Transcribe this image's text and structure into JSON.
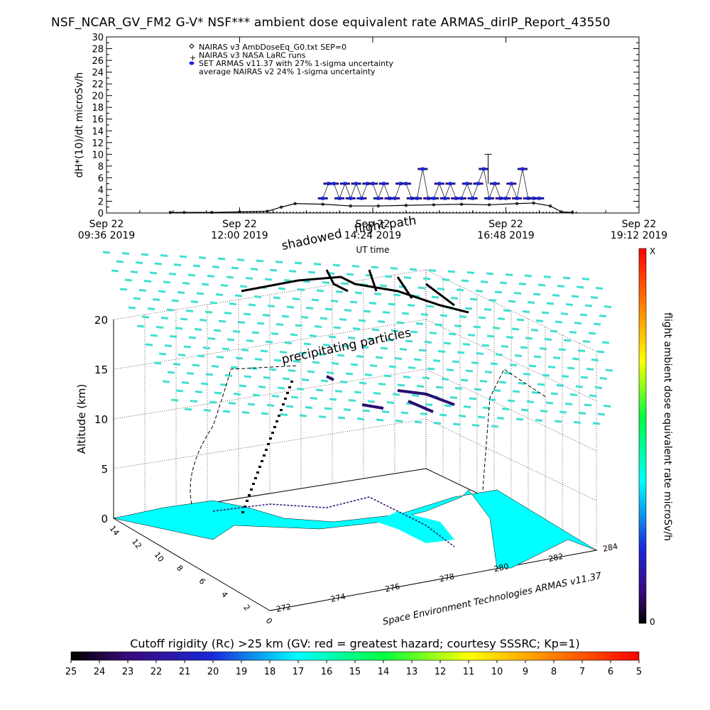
{
  "title": "NSF_NCAR_GV_FM2 G-V* NSF*** ambient dose equivalent rate ARMAS_dirIP_Report_43550",
  "colors": {
    "series_armas": "#2a1070",
    "series_armas_marker": "#1a28d8",
    "surface": "#00ffff",
    "mesh": "#40e0d0",
    "track": "#000000"
  },
  "chart_data": [
    {
      "type": "scatter",
      "ylabel": "dH*(10)/dt microSv/h",
      "xlabel": "UT time",
      "ylim": [
        0,
        30
      ],
      "yticks": [
        0,
        2,
        4,
        6,
        8,
        10,
        12,
        14,
        16,
        18,
        20,
        22,
        24,
        26,
        28,
        30
      ],
      "xticks": [
        {
          "line1": "Sep 22",
          "line2": "09:36 2019"
        },
        {
          "line1": "Sep 22",
          "line2": "12:00 2019"
        },
        {
          "line1": "Sep 22",
          "line2": "14:24 2019"
        },
        {
          "line1": "Sep 22",
          "line2": "16:48 2019"
        },
        {
          "line1": "Sep 22",
          "line2": "19:12 2019"
        }
      ],
      "xrange_hours": [
        9.6,
        19.2
      ],
      "legend": [
        "NAIRAS v3 AmbDoseEq_G0.txt SEP=0",
        "NAIRAS v3 NASA LaRC runs",
        "SET ARMAS v11.37 with 27% 1-sigma uncertainty",
        "average NAIRAS v2 24% 1-sigma uncertainty"
      ],
      "series": [
        {
          "name": "NAIRAS v3 AmbDoseEq_G0.txt SEP=0",
          "x": [
            10.75,
            11.0,
            11.5,
            12.0,
            12.5,
            12.75,
            13.0,
            13.5,
            14.0,
            14.5,
            15.0,
            15.5,
            16.0,
            16.5,
            17.0,
            17.3,
            17.6,
            17.8,
            18.0
          ],
          "y": [
            0.1,
            0.1,
            0.1,
            0.2,
            0.3,
            1.0,
            1.6,
            1.5,
            1.2,
            1.2,
            1.3,
            1.4,
            1.5,
            1.4,
            1.6,
            1.7,
            1.2,
            0.2,
            0.1
          ]
        },
        {
          "name": "SET ARMAS v11.37 with 27% 1-sigma uncertainty",
          "x": [
            13.5,
            13.6,
            13.7,
            13.8,
            13.9,
            14.0,
            14.1,
            14.2,
            14.3,
            14.4,
            14.5,
            14.6,
            14.7,
            14.8,
            14.9,
            15.0,
            15.1,
            15.2,
            15.3,
            15.4,
            15.5,
            15.6,
            15.7,
            15.8,
            15.9,
            16.0,
            16.1,
            16.2,
            16.3,
            16.4,
            16.5,
            16.6,
            16.7,
            16.8,
            16.9,
            17.0,
            17.1,
            17.2,
            17.3,
            17.4
          ],
          "y": [
            2.5,
            5,
            5,
            2.5,
            5,
            2.5,
            5,
            2.5,
            5,
            5,
            2.5,
            5,
            2.5,
            2.5,
            5,
            5,
            2.5,
            2.5,
            7.5,
            2.5,
            2.5,
            5,
            2.5,
            5,
            2.5,
            2.5,
            5,
            2.5,
            5,
            7.5,
            2.5,
            5,
            2.5,
            2.5,
            5,
            2.5,
            7.5,
            2.5,
            2.5,
            2.5
          ]
        }
      ]
    },
    {
      "type": "scatter",
      "zlabel": "Altitude (km)",
      "zticks": [
        0,
        5,
        10,
        15,
        20
      ],
      "lon_ticks": [
        272,
        274,
        276,
        278,
        280,
        282,
        284
      ],
      "lat_ticks": [
        0,
        2,
        4,
        6,
        8,
        10,
        12,
        14
      ],
      "annotations": [
        "shadowed",
        "flight path",
        "precipitating particles"
      ],
      "credit": "Space Environment Technologies ARMAS v11.37",
      "colorbar_label": "flight ambient dose equivalent rate microSv/h",
      "colorbar_top": "X",
      "colorbar_bottom": "0"
    },
    {
      "type": "heatmap",
      "title": "Cutoff rigidity (Rc) >25 km (GV: red = greatest hazard; courtesy SSSRC; Kp=1)",
      "ticks": [
        "25",
        "24",
        "23",
        "22",
        "21",
        "20",
        "19",
        "18",
        "17",
        "16",
        "15",
        "14",
        "13",
        "12",
        "11",
        "10",
        "9",
        "8",
        "7",
        "6",
        "5"
      ]
    }
  ]
}
